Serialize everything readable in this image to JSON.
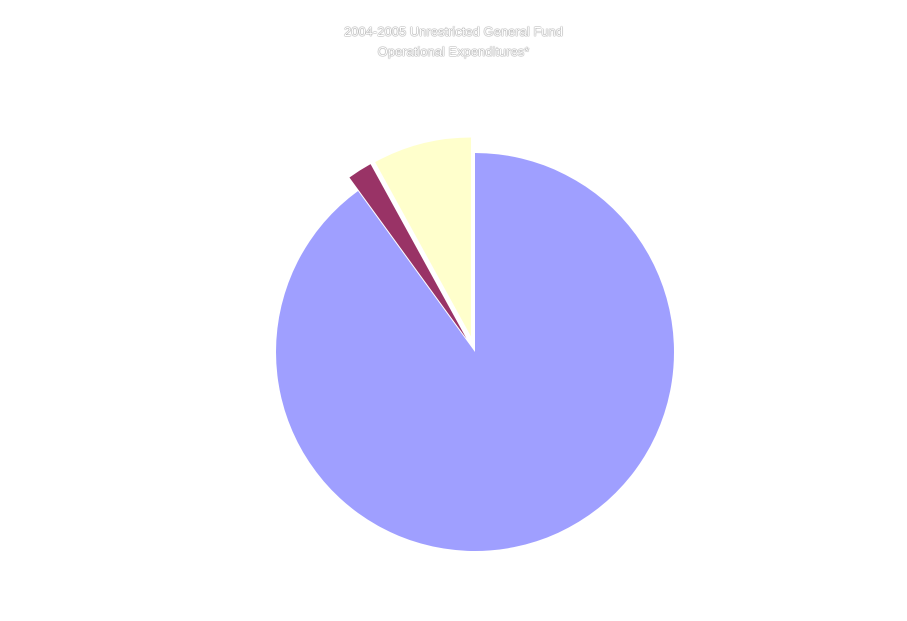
{
  "chart_data": {
    "type": "pie",
    "title": "2004-2005 Unrestricted General Fund Operational Expenditures*",
    "title_lines": [
      "2004-2005 Unrestricted General Fund",
      "Operational Expenditures*"
    ],
    "slices": [
      {
        "value": 90.0,
        "color": "#9f9fff",
        "exploded": false
      },
      {
        "value": 2.0,
        "color": "#993366",
        "exploded": true
      },
      {
        "value": 8.0,
        "color": "#ffffcc",
        "exploded": true
      }
    ],
    "start_angle_deg": 0,
    "direction": "clockwise",
    "legend": "none"
  }
}
